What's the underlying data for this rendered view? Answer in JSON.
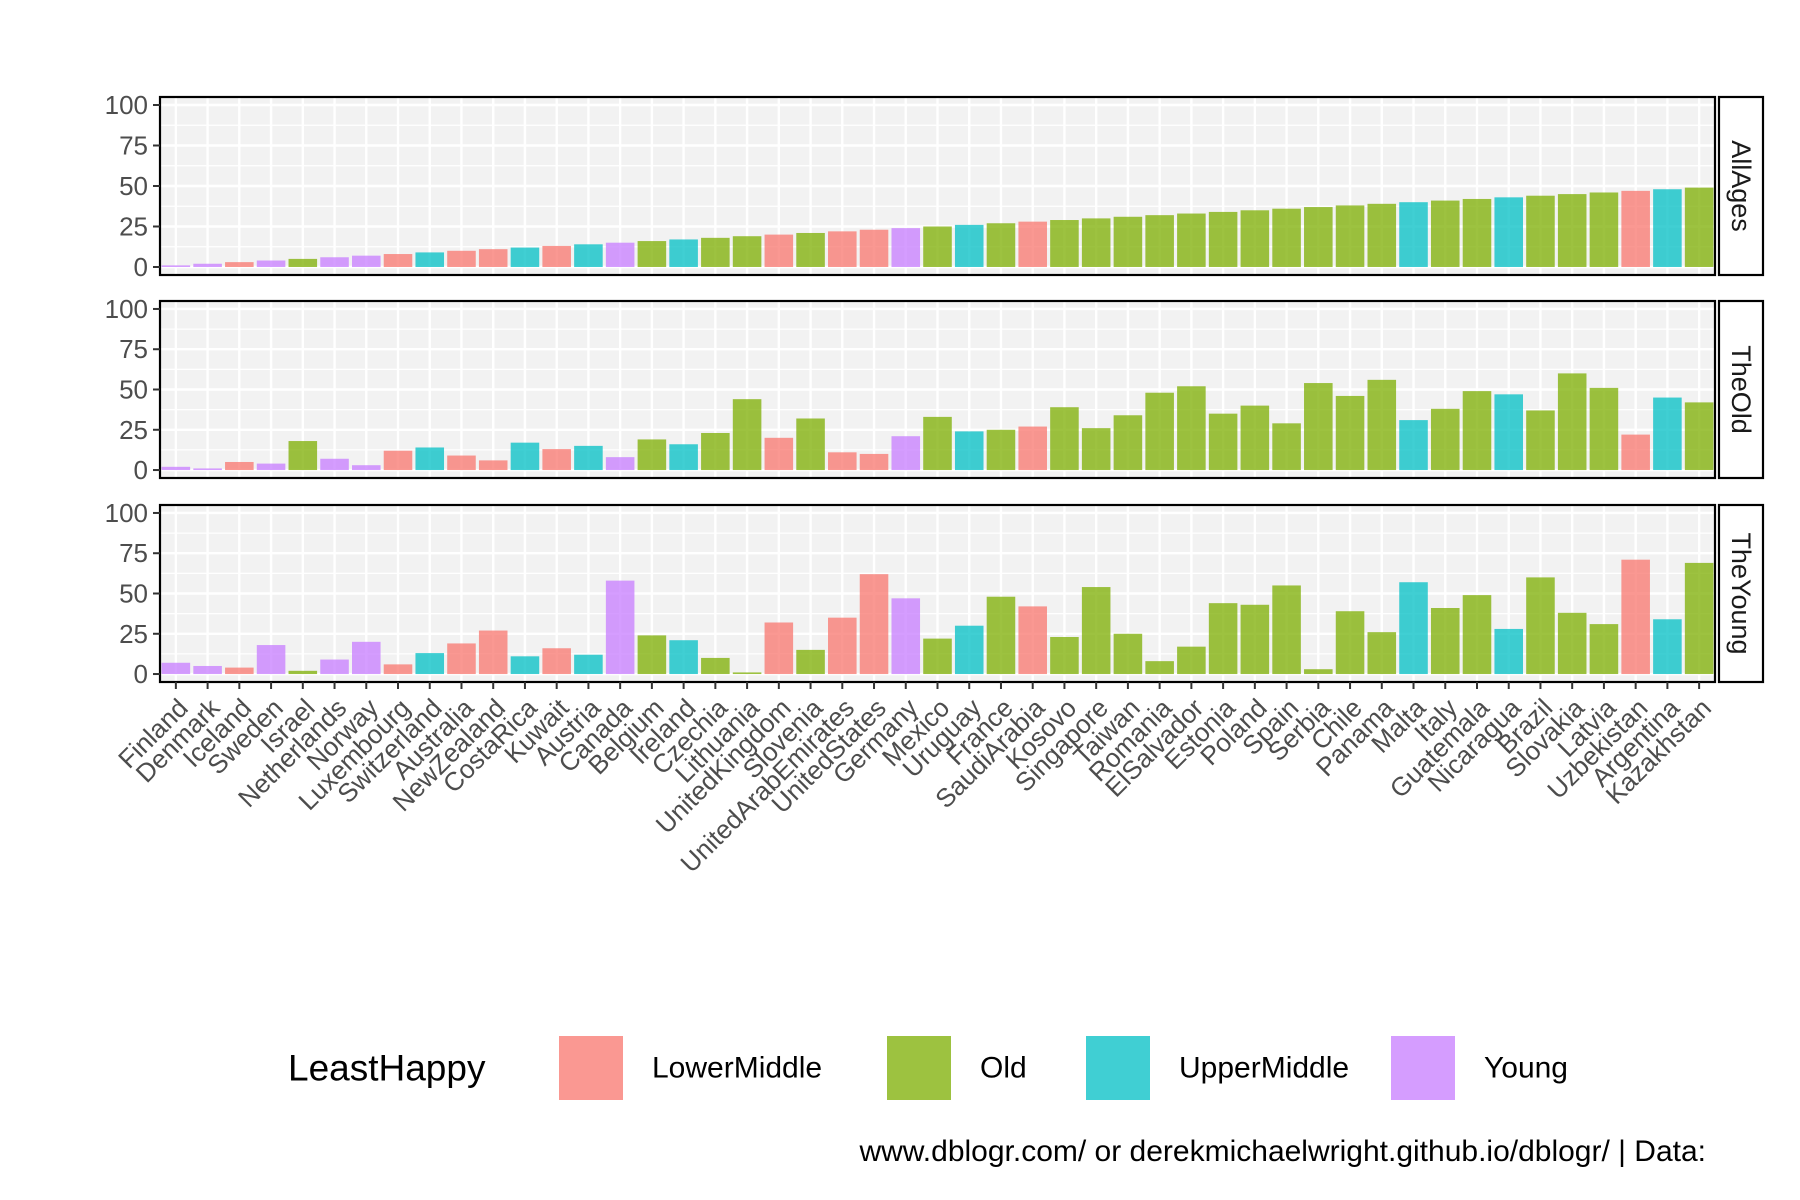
{
  "chart_data": {
    "type": "bar",
    "facet_by": "panel",
    "categories": [
      "Finland",
      "Denmark",
      "Iceland",
      "Sweden",
      "Israel",
      "Netherlands",
      "Norway",
      "Luxembourg",
      "Switzerland",
      "Australia",
      "NewZealand",
      "CostaRica",
      "Kuwait",
      "Austria",
      "Canada",
      "Belgium",
      "Ireland",
      "Czechia",
      "Lithuania",
      "UnitedKingdom",
      "Slovenia",
      "UnitedArabEmirates",
      "UnitedStates",
      "Germany",
      "Mexico",
      "Uruguay",
      "France",
      "SaudiArabia",
      "Kosovo",
      "Singapore",
      "Taiwan",
      "Romania",
      "ElSalvador",
      "Estonia",
      "Poland",
      "Spain",
      "Serbia",
      "Chile",
      "Panama",
      "Malta",
      "Italy",
      "Guatemala",
      "Nicaragua",
      "Brazil",
      "Slovakia",
      "Latvia",
      "Uzbekistan",
      "Argentina",
      "Kazakhstan"
    ],
    "group": [
      "Young",
      "Young",
      "LowerMiddle",
      "Young",
      "Old",
      "Young",
      "Young",
      "LowerMiddle",
      "UpperMiddle",
      "LowerMiddle",
      "LowerMiddle",
      "UpperMiddle",
      "LowerMiddle",
      "UpperMiddle",
      "Young",
      "Old",
      "UpperMiddle",
      "Old",
      "Old",
      "LowerMiddle",
      "Old",
      "LowerMiddle",
      "LowerMiddle",
      "Young",
      "Old",
      "UpperMiddle",
      "Old",
      "LowerMiddle",
      "Old",
      "Old",
      "Old",
      "Old",
      "Old",
      "Old",
      "Old",
      "Old",
      "Old",
      "Old",
      "Old",
      "UpperMiddle",
      "Old",
      "Old",
      "UpperMiddle",
      "Old",
      "Old",
      "Old",
      "LowerMiddle",
      "UpperMiddle",
      "Old"
    ],
    "panels": [
      {
        "name": "AllAges",
        "values": [
          1,
          2,
          3,
          4,
          5,
          6,
          7,
          8,
          9,
          10,
          11,
          12,
          13,
          14,
          15,
          16,
          17,
          18,
          19,
          20,
          21,
          22,
          23,
          24,
          25,
          26,
          27,
          28,
          29,
          30,
          31,
          32,
          33,
          34,
          35,
          36,
          37,
          38,
          39,
          40,
          41,
          42,
          43,
          44,
          45,
          46,
          47,
          48,
          49
        ]
      },
      {
        "name": "TheOld",
        "values": [
          2,
          1,
          5,
          4,
          18,
          7,
          3,
          12,
          14,
          9,
          6,
          17,
          13,
          15,
          8,
          19,
          16,
          23,
          44,
          20,
          32,
          11,
          10,
          21,
          33,
          24,
          25,
          27,
          39,
          26,
          34,
          48,
          52,
          35,
          40,
          29,
          54,
          46,
          56,
          31,
          38,
          49,
          47,
          37,
          60,
          51,
          22,
          45,
          42
        ]
      },
      {
        "name": "TheYoung",
        "values": [
          7,
          5,
          4,
          18,
          2,
          9,
          20,
          6,
          13,
          19,
          27,
          11,
          16,
          12,
          58,
          24,
          21,
          10,
          1,
          32,
          15,
          35,
          62,
          47,
          22,
          30,
          48,
          42,
          23,
          54,
          25,
          8,
          17,
          44,
          43,
          55,
          3,
          39,
          26,
          57,
          41,
          49,
          28,
          60,
          38,
          31,
          71,
          34,
          69
        ]
      }
    ],
    "ylim": [
      0,
      100
    ],
    "yticks": [
      0,
      25,
      50,
      75,
      100
    ],
    "legend": {
      "title": "LeastHappy",
      "position": "bottom",
      "entries": [
        {
          "name": "LowerMiddle",
          "color": "#F8766D"
        },
        {
          "name": "Old",
          "color": "#7CAE00"
        },
        {
          "name": "UpperMiddle",
          "color": "#00BFC4"
        },
        {
          "name": "Young",
          "color": "#C77CFF"
        }
      ]
    },
    "grid": true,
    "caption": "www.dblogr.com/ or derekmichaelwright.github.io/dblogr/ | Data:"
  }
}
